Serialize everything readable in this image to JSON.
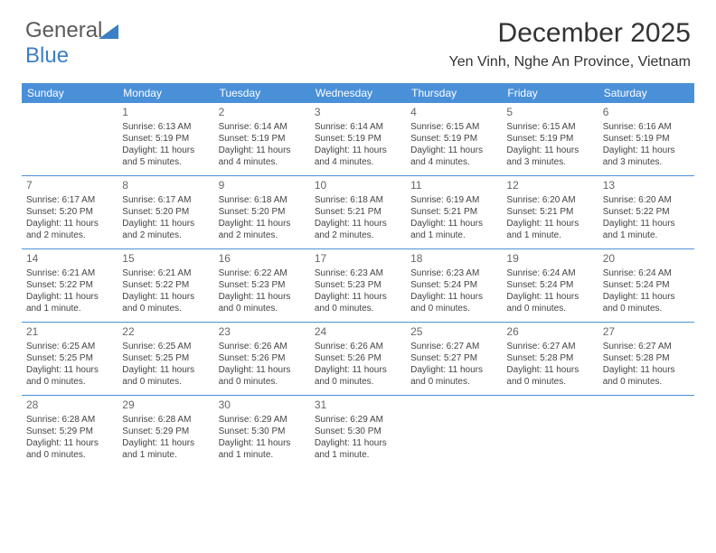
{
  "logo": {
    "part1": "General",
    "part2": "Blue"
  },
  "title": "December 2025",
  "subtitle": "Yen Vinh, Nghe An Province, Vietnam",
  "colors": {
    "header_bg": "#4a90d9",
    "header_text": "#ffffff",
    "row_border": "#4a90d9",
    "body_text": "#444444",
    "daynum_text": "#666666",
    "page_bg": "#ffffff",
    "logo_gray": "#5a5a5a",
    "logo_blue": "#3b7fc4"
  },
  "dayHeaders": [
    "Sunday",
    "Monday",
    "Tuesday",
    "Wednesday",
    "Thursday",
    "Friday",
    "Saturday"
  ],
  "weeks": [
    [
      {
        "num": "",
        "lines": []
      },
      {
        "num": "1",
        "lines": [
          "Sunrise: 6:13 AM",
          "Sunset: 5:19 PM",
          "Daylight: 11 hours",
          "and 5 minutes."
        ]
      },
      {
        "num": "2",
        "lines": [
          "Sunrise: 6:14 AM",
          "Sunset: 5:19 PM",
          "Daylight: 11 hours",
          "and 4 minutes."
        ]
      },
      {
        "num": "3",
        "lines": [
          "Sunrise: 6:14 AM",
          "Sunset: 5:19 PM",
          "Daylight: 11 hours",
          "and 4 minutes."
        ]
      },
      {
        "num": "4",
        "lines": [
          "Sunrise: 6:15 AM",
          "Sunset: 5:19 PM",
          "Daylight: 11 hours",
          "and 4 minutes."
        ]
      },
      {
        "num": "5",
        "lines": [
          "Sunrise: 6:15 AM",
          "Sunset: 5:19 PM",
          "Daylight: 11 hours",
          "and 3 minutes."
        ]
      },
      {
        "num": "6",
        "lines": [
          "Sunrise: 6:16 AM",
          "Sunset: 5:19 PM",
          "Daylight: 11 hours",
          "and 3 minutes."
        ]
      }
    ],
    [
      {
        "num": "7",
        "lines": [
          "Sunrise: 6:17 AM",
          "Sunset: 5:20 PM",
          "Daylight: 11 hours",
          "and 2 minutes."
        ]
      },
      {
        "num": "8",
        "lines": [
          "Sunrise: 6:17 AM",
          "Sunset: 5:20 PM",
          "Daylight: 11 hours",
          "and 2 minutes."
        ]
      },
      {
        "num": "9",
        "lines": [
          "Sunrise: 6:18 AM",
          "Sunset: 5:20 PM",
          "Daylight: 11 hours",
          "and 2 minutes."
        ]
      },
      {
        "num": "10",
        "lines": [
          "Sunrise: 6:18 AM",
          "Sunset: 5:21 PM",
          "Daylight: 11 hours",
          "and 2 minutes."
        ]
      },
      {
        "num": "11",
        "lines": [
          "Sunrise: 6:19 AM",
          "Sunset: 5:21 PM",
          "Daylight: 11 hours",
          "and 1 minute."
        ]
      },
      {
        "num": "12",
        "lines": [
          "Sunrise: 6:20 AM",
          "Sunset: 5:21 PM",
          "Daylight: 11 hours",
          "and 1 minute."
        ]
      },
      {
        "num": "13",
        "lines": [
          "Sunrise: 6:20 AM",
          "Sunset: 5:22 PM",
          "Daylight: 11 hours",
          "and 1 minute."
        ]
      }
    ],
    [
      {
        "num": "14",
        "lines": [
          "Sunrise: 6:21 AM",
          "Sunset: 5:22 PM",
          "Daylight: 11 hours",
          "and 1 minute."
        ]
      },
      {
        "num": "15",
        "lines": [
          "Sunrise: 6:21 AM",
          "Sunset: 5:22 PM",
          "Daylight: 11 hours",
          "and 0 minutes."
        ]
      },
      {
        "num": "16",
        "lines": [
          "Sunrise: 6:22 AM",
          "Sunset: 5:23 PM",
          "Daylight: 11 hours",
          "and 0 minutes."
        ]
      },
      {
        "num": "17",
        "lines": [
          "Sunrise: 6:23 AM",
          "Sunset: 5:23 PM",
          "Daylight: 11 hours",
          "and 0 minutes."
        ]
      },
      {
        "num": "18",
        "lines": [
          "Sunrise: 6:23 AM",
          "Sunset: 5:24 PM",
          "Daylight: 11 hours",
          "and 0 minutes."
        ]
      },
      {
        "num": "19",
        "lines": [
          "Sunrise: 6:24 AM",
          "Sunset: 5:24 PM",
          "Daylight: 11 hours",
          "and 0 minutes."
        ]
      },
      {
        "num": "20",
        "lines": [
          "Sunrise: 6:24 AM",
          "Sunset: 5:24 PM",
          "Daylight: 11 hours",
          "and 0 minutes."
        ]
      }
    ],
    [
      {
        "num": "21",
        "lines": [
          "Sunrise: 6:25 AM",
          "Sunset: 5:25 PM",
          "Daylight: 11 hours",
          "and 0 minutes."
        ]
      },
      {
        "num": "22",
        "lines": [
          "Sunrise: 6:25 AM",
          "Sunset: 5:25 PM",
          "Daylight: 11 hours",
          "and 0 minutes."
        ]
      },
      {
        "num": "23",
        "lines": [
          "Sunrise: 6:26 AM",
          "Sunset: 5:26 PM",
          "Daylight: 11 hours",
          "and 0 minutes."
        ]
      },
      {
        "num": "24",
        "lines": [
          "Sunrise: 6:26 AM",
          "Sunset: 5:26 PM",
          "Daylight: 11 hours",
          "and 0 minutes."
        ]
      },
      {
        "num": "25",
        "lines": [
          "Sunrise: 6:27 AM",
          "Sunset: 5:27 PM",
          "Daylight: 11 hours",
          "and 0 minutes."
        ]
      },
      {
        "num": "26",
        "lines": [
          "Sunrise: 6:27 AM",
          "Sunset: 5:28 PM",
          "Daylight: 11 hours",
          "and 0 minutes."
        ]
      },
      {
        "num": "27",
        "lines": [
          "Sunrise: 6:27 AM",
          "Sunset: 5:28 PM",
          "Daylight: 11 hours",
          "and 0 minutes."
        ]
      }
    ],
    [
      {
        "num": "28",
        "lines": [
          "Sunrise: 6:28 AM",
          "Sunset: 5:29 PM",
          "Daylight: 11 hours",
          "and 0 minutes."
        ]
      },
      {
        "num": "29",
        "lines": [
          "Sunrise: 6:28 AM",
          "Sunset: 5:29 PM",
          "Daylight: 11 hours",
          "and 1 minute."
        ]
      },
      {
        "num": "30",
        "lines": [
          "Sunrise: 6:29 AM",
          "Sunset: 5:30 PM",
          "Daylight: 11 hours",
          "and 1 minute."
        ]
      },
      {
        "num": "31",
        "lines": [
          "Sunrise: 6:29 AM",
          "Sunset: 5:30 PM",
          "Daylight: 11 hours",
          "and 1 minute."
        ]
      },
      {
        "num": "",
        "lines": []
      },
      {
        "num": "",
        "lines": []
      },
      {
        "num": "",
        "lines": []
      }
    ]
  ]
}
